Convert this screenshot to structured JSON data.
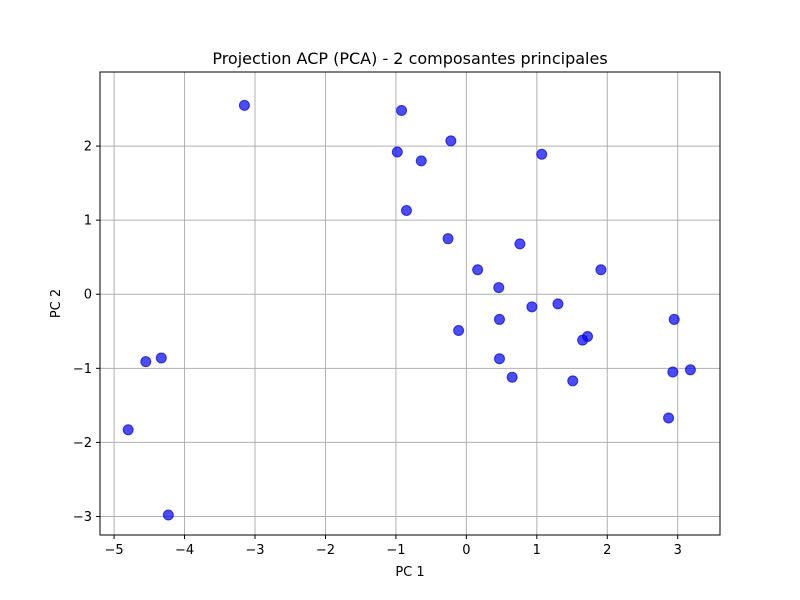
{
  "chart_data": {
    "type": "scatter",
    "title": "Projection ACP (PCA) - 2 composantes principales",
    "xlabel": "PC 1",
    "ylabel": "PC 2",
    "xlim": [
      -5.2,
      3.6
    ],
    "ylim": [
      -3.25,
      3.0
    ],
    "xticks": [
      -5,
      -4,
      -3,
      -2,
      -1,
      0,
      1,
      2,
      3
    ],
    "yticks": [
      -3,
      -2,
      -1,
      0,
      1,
      2
    ],
    "xtick_labels": [
      "−5",
      "−4",
      "−3",
      "−2",
      "−1",
      "0",
      "1",
      "2",
      "3"
    ],
    "ytick_labels": [
      "−3",
      "−2",
      "−1",
      "0",
      "1",
      "2"
    ],
    "grid": true,
    "marker_color": "#0000ff",
    "marker_edge_color": "#0000b0",
    "marker_opacity": 0.7,
    "points": [
      {
        "x": -3.15,
        "y": 2.55
      },
      {
        "x": -0.92,
        "y": 2.48
      },
      {
        "x": -0.98,
        "y": 1.92
      },
      {
        "x": -0.22,
        "y": 2.07
      },
      {
        "x": -0.64,
        "y": 1.8
      },
      {
        "x": 1.07,
        "y": 1.89
      },
      {
        "x": -0.85,
        "y": 1.13
      },
      {
        "x": -0.26,
        "y": 0.75
      },
      {
        "x": 0.76,
        "y": 0.68
      },
      {
        "x": 0.16,
        "y": 0.33
      },
      {
        "x": 1.91,
        "y": 0.33
      },
      {
        "x": 0.46,
        "y": 0.09
      },
      {
        "x": 0.93,
        "y": -0.17
      },
      {
        "x": 1.3,
        "y": -0.13
      },
      {
        "x": -0.11,
        "y": -0.49
      },
      {
        "x": 0.47,
        "y": -0.34
      },
      {
        "x": 2.95,
        "y": -0.34
      },
      {
        "x": 1.72,
        "y": -0.57
      },
      {
        "x": 1.65,
        "y": -0.62
      },
      {
        "x": 0.47,
        "y": -0.87
      },
      {
        "x": 0.65,
        "y": -1.12
      },
      {
        "x": 1.51,
        "y": -1.17
      },
      {
        "x": 2.93,
        "y": -1.05
      },
      {
        "x": 3.18,
        "y": -1.02
      },
      {
        "x": 2.87,
        "y": -1.67
      },
      {
        "x": -4.55,
        "y": -0.91
      },
      {
        "x": -4.33,
        "y": -0.86
      },
      {
        "x": -4.8,
        "y": -1.83
      },
      {
        "x": -4.23,
        "y": -2.98
      }
    ]
  }
}
